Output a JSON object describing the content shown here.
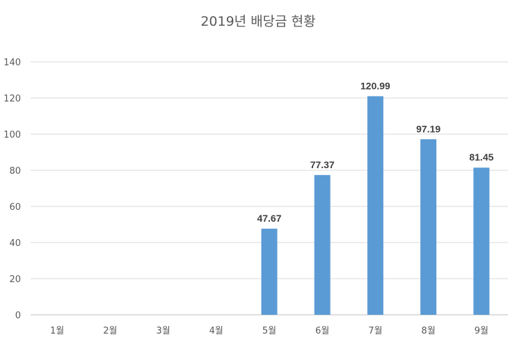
{
  "chart_data": {
    "type": "bar",
    "title": "2019년 배당금 현황",
    "xlabel": "",
    "ylabel": "",
    "categories": [
      "1월",
      "2월",
      "3월",
      "4월",
      "5월",
      "6월",
      "7월",
      "8월",
      "9월"
    ],
    "values": [
      null,
      null,
      null,
      null,
      47.67,
      77.37,
      120.99,
      97.19,
      81.45
    ],
    "data_labels": [
      "",
      "",
      "",
      "",
      "47.67",
      "77.37",
      "120.99",
      "97.19",
      "81.45"
    ],
    "ylim": [
      0,
      140
    ],
    "yticks": [
      "0",
      "20",
      "40",
      "60",
      "80",
      "100",
      "120",
      "140"
    ],
    "grid": true,
    "legend": "none",
    "bar_color": "#5b9bd5"
  }
}
